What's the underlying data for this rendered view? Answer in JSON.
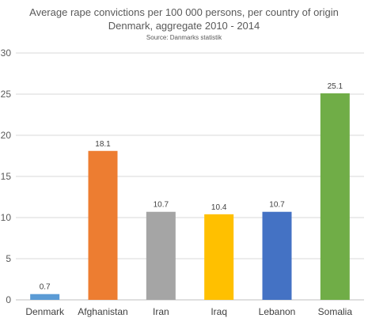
{
  "chart_data": {
    "type": "bar",
    "title": "Average rape convictions per 100 000 persons, per country of origin",
    "subtitle": "Denmark, aggregate 2010 - 2014",
    "source": "Source: Danmarks statistik",
    "categories": [
      "Denmark",
      "Afghanistan",
      "Iran",
      "Iraq",
      "Lebanon",
      "Somalia"
    ],
    "values": [
      0.7,
      18.1,
      10.7,
      10.4,
      10.7,
      25.1
    ],
    "data_labels": [
      "0.7",
      "18.1",
      "10.7",
      "10.4",
      "10.7",
      "25.1"
    ],
    "colors": [
      "#5B9BD5",
      "#ED7D31",
      "#A5A5A5",
      "#FFC000",
      "#4472C4",
      "#70AD47"
    ],
    "ylim": [
      0,
      30
    ],
    "yticks": [
      "0",
      "5",
      "10",
      "15",
      "20",
      "25",
      "30"
    ],
    "grid": true,
    "xlabel": "",
    "ylabel": ""
  }
}
